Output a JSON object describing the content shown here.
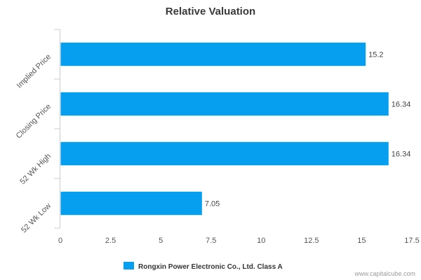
{
  "chart_data": {
    "type": "bar",
    "orientation": "horizontal",
    "title": "Relative Valuation",
    "categories": [
      "Implied Price",
      "Closing Price",
      "52 Wk High",
      "52 Wk Low"
    ],
    "series": [
      {
        "name": "Rongxin Power Electronic Co., Ltd. Class A",
        "values": [
          15.2,
          16.34,
          16.34,
          7.05
        ],
        "value_labels": [
          "15.2",
          "16.34",
          "16.34",
          "7.05"
        ],
        "color": "#069ff0"
      }
    ],
    "xlim": [
      0,
      17.5
    ],
    "xticks": [
      0,
      2.5,
      5,
      7.5,
      10,
      12.5,
      15,
      17.5
    ],
    "xtick_labels": [
      "0",
      "2.5",
      "5",
      "7.5",
      "10",
      "12.5",
      "15",
      "17.5"
    ],
    "grid": false,
    "legend_position": "bottom-center"
  },
  "watermark": "www.capitalcube.com",
  "colors": {
    "bar": "#069ff0",
    "axis": "#cccccc"
  }
}
